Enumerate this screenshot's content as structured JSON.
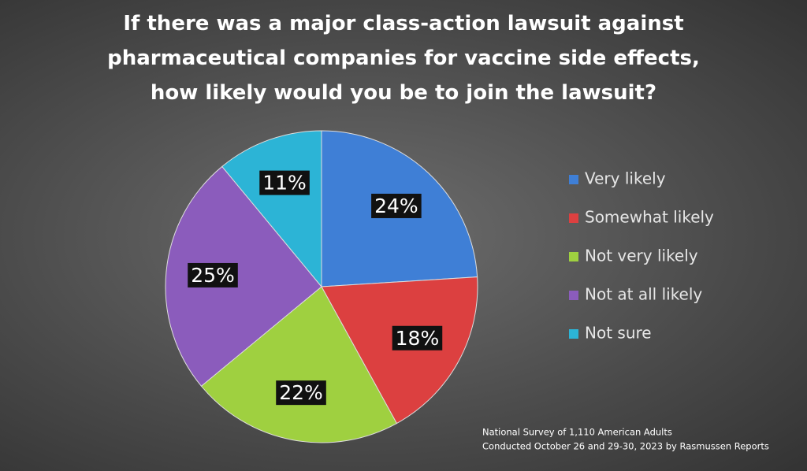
{
  "chart_data": {
    "type": "pie",
    "title": "If there was a major class-action lawsuit against pharmaceutical companies for vaccine side effects, how likely would you be to join the lawsuit?",
    "categories": [
      "Very likely",
      "Somewhat likely",
      "Not very likely",
      "Not at all likely",
      "Not sure"
    ],
    "values": [
      24,
      18,
      22,
      25,
      11
    ],
    "value_labels": [
      "24%",
      "18%",
      "22%",
      "25%",
      "11%"
    ],
    "colors": [
      "#3f7fd6",
      "#dc4040",
      "#9fd040",
      "#8b5cbc",
      "#2cb4d6"
    ],
    "legend": "right",
    "notes": [
      "National Survey of 1,110 American Adults",
      "Conducted October 26 and 29-30, 2023 by Rasmussen Reports"
    ]
  }
}
